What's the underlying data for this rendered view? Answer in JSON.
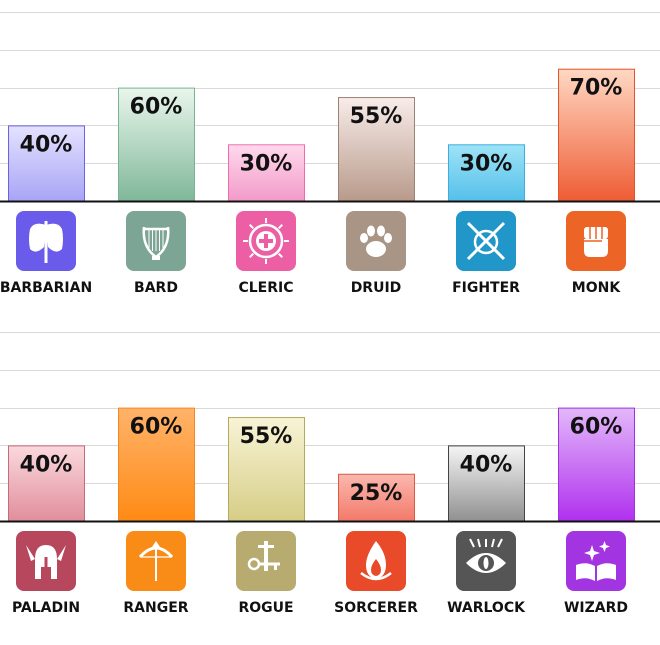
{
  "chart_data": [
    {
      "type": "bar",
      "categories": [
        "BARBARIAN",
        "BARD",
        "CLERIC",
        "DRUID",
        "FIGHTER",
        "MONK"
      ],
      "values": [
        40,
        60,
        30,
        55,
        30,
        70
      ],
      "value_labels": [
        "40%",
        "60%",
        "30%",
        "55%",
        "30%",
        "70%"
      ],
      "icons": [
        "double-axe-icon",
        "lyre-icon",
        "holy-cross-icon",
        "paw-icon",
        "crossed-swords-shield-icon",
        "fist-icon"
      ],
      "icon_colors": [
        "#6a5bea",
        "#7da596",
        "#ec5fa5",
        "#a89585",
        "#2196c8",
        "#ec6426"
      ],
      "bar_colors": [
        [
          "#e4e2ff",
          "#a8a4f5"
        ],
        [
          "#e9f6ec",
          "#7fb799"
        ],
        [
          "#ffd9ec",
          "#f29ac9"
        ],
        [
          "#f8ecea",
          "#b89a8a"
        ],
        [
          "#9ee3f7",
          "#55c0ea"
        ],
        [
          "#ffd8c3",
          "#ee5c34"
        ]
      ],
      "bar_border_colors": [
        "#6d62e4",
        "#79b393",
        "#ee6db1",
        "#9b8272",
        "#3bafe0",
        "#e2542a"
      ],
      "ylim": [
        0,
        100
      ],
      "grid": true
    },
    {
      "type": "bar",
      "categories": [
        "PALADIN",
        "RANGER",
        "ROGUE",
        "SORCERER",
        "WARLOCK",
        "WIZARD"
      ],
      "values": [
        40,
        60,
        55,
        25,
        40,
        60
      ],
      "value_labels": [
        "40%",
        "60%",
        "55%",
        "25%",
        "40%",
        "60%"
      ],
      "icons": [
        "winged-helmet-icon",
        "bow-arrow-icon",
        "dagger-key-icon",
        "flame-icon",
        "eye-icon",
        "spellbook-icon"
      ],
      "icon_colors": [
        "#b6475d",
        "#f88c16",
        "#b8ab70",
        "#e84a2a",
        "#555555",
        "#a334e2"
      ],
      "bar_colors": [
        [
          "#fbd8de",
          "#e08e9b"
        ],
        [
          "#ffb36a",
          "#ff8a14"
        ],
        [
          "#f8f4d6",
          "#d6cd86"
        ],
        [
          "#fbb8ae",
          "#f2796a"
        ],
        [
          "#f5f5f5",
          "#909090"
        ],
        [
          "#e3b8fa",
          "#b030ee"
        ]
      ],
      "bar_border_colors": [
        "#c76a79",
        "#f2891e",
        "#b5a95a",
        "#dd5a48",
        "#444444",
        "#a031e0"
      ],
      "ylim": [
        0,
        100
      ],
      "grid": true
    }
  ]
}
